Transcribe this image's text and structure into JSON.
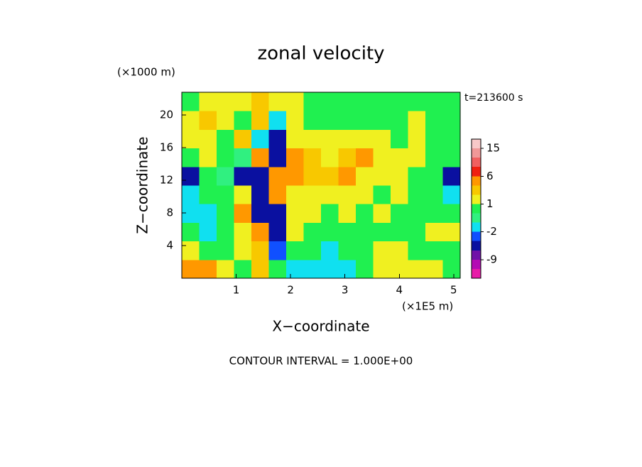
{
  "chart_data": {
    "type": "contour",
    "title": "zonal velocity",
    "y_unit": "(×1000 m)",
    "time_label": "t=213600 s",
    "x_unit": "(×1E5 m)",
    "xlabel": "X−coordinate",
    "ylabel": "Z−coordinate",
    "footer": "CONTOUR INTERVAL = 1.000E+00",
    "xlim": [
      0,
      5.12
    ],
    "ylim": [
      0,
      22.8
    ],
    "xticks": [
      1,
      2,
      3,
      4,
      5
    ],
    "yticks": [
      4,
      8,
      12,
      16,
      20
    ],
    "values": [
      [
        3.5,
        3.5,
        1.5,
        0.5,
        2.5,
        0.5,
        -1.5,
        -1.5,
        -1.5,
        -1.5,
        0.5,
        1.5,
        1.5,
        1.5,
        1.5,
        0.5
      ],
      [
        1.5,
        0.5,
        0.5,
        1.5,
        2.5,
        -3,
        0.5,
        0.5,
        -1.5,
        0.5,
        0.5,
        1.5,
        1.5,
        0.5,
        0.5,
        0.5
      ],
      [
        0.5,
        -1.5,
        0.5,
        1.5,
        3.5,
        -3.5,
        1.5,
        0.5,
        0.5,
        0.5,
        0.5,
        0.5,
        0.5,
        0.5,
        1.5,
        1.5
      ],
      [
        -1.5,
        -1.5,
        0.5,
        3.5,
        -4,
        -3.5,
        1.5,
        1.5,
        0.5,
        1.5,
        0.5,
        1.5,
        0.5,
        0.5,
        0.5,
        0.5
      ],
      [
        -1.5,
        0.5,
        0.5,
        1.5,
        -3.5,
        3.5,
        1.5,
        1.5,
        1.5,
        1.5,
        1.5,
        0.5,
        1.5,
        0.5,
        0.5,
        -1.5
      ],
      [
        -4,
        0.5,
        -0.5,
        -4,
        -5,
        4,
        3.5,
        2.5,
        2.5,
        3.5,
        1.5,
        1.5,
        1.5,
        0.5,
        0.5,
        -4
      ],
      [
        0.5,
        1.5,
        0.5,
        -0.5,
        3.5,
        -4,
        3.5,
        2.5,
        1.5,
        2.5,
        3.5,
        1.5,
        1.5,
        1.5,
        0.5,
        0.5
      ],
      [
        1.5,
        1.5,
        0.5,
        2.5,
        -1.5,
        -3.5,
        1.5,
        1.5,
        1.5,
        1.5,
        1.5,
        1.5,
        0.5,
        1.5,
        0.5,
        0.5
      ],
      [
        1.5,
        2.5,
        1.5,
        0.5,
        2.5,
        -1.5,
        1.5,
        0.5,
        0.5,
        0.5,
        0.5,
        0.5,
        0.5,
        1.5,
        0.5,
        0.5
      ],
      [
        0.5,
        1.5,
        1.5,
        1.5,
        2.5,
        1.5,
        1.5,
        0.5,
        0.5,
        0.5,
        0.5,
        0.5,
        0.5,
        0.5,
        0.5,
        0.5
      ]
    ],
    "levels": [
      -15,
      -12,
      -9,
      -6,
      -3,
      -2,
      -1,
      0,
      1,
      2,
      3,
      6,
      9,
      12,
      15,
      18
    ],
    "colors": [
      "#e81ca8",
      "#b40cb4",
      "#7010a8",
      "#0a10a0",
      "#1050ff",
      "#10e0f0",
      "#30f080",
      "#20f050",
      "#f0f020",
      "#f8c800",
      "#ff9800",
      "#f02010",
      "#f06060",
      "#f09898",
      "#f8c8c8"
    ],
    "cbar_ticks": [
      15,
      6,
      1,
      -2,
      -9
    ]
  }
}
